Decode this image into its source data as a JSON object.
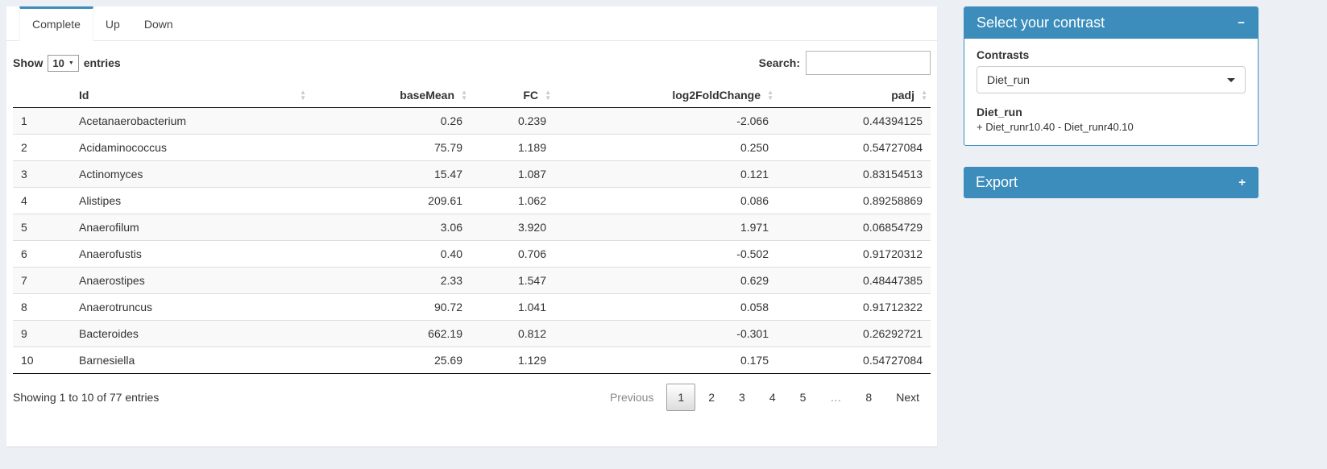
{
  "colors": {
    "primary": "#3c8dbc",
    "page_background": "#ecf0f5",
    "stripe_row": "#f9f9f9"
  },
  "tabs": {
    "items": [
      {
        "label": "Complete",
        "active": true
      },
      {
        "label": "Up",
        "active": false
      },
      {
        "label": "Down",
        "active": false
      }
    ]
  },
  "controls": {
    "show_label": "Show",
    "length_value": "10",
    "entries_label": "entries",
    "search_label": "Search:",
    "search_value": ""
  },
  "table": {
    "columns": [
      {
        "label": "",
        "sortable": false,
        "align": "left"
      },
      {
        "label": "Id",
        "sortable": true,
        "align": "left"
      },
      {
        "label": "baseMean",
        "sortable": true,
        "align": "right"
      },
      {
        "label": "FC",
        "sortable": true,
        "align": "right"
      },
      {
        "label": "log2FoldChange",
        "sortable": true,
        "align": "right"
      },
      {
        "label": "padj",
        "sortable": true,
        "align": "right"
      }
    ],
    "rows": [
      [
        "1",
        "Acetanaerobacterium",
        "0.26",
        "0.239",
        "-2.066",
        "0.44394125"
      ],
      [
        "2",
        "Acidaminococcus",
        "75.79",
        "1.189",
        "0.250",
        "0.54727084"
      ],
      [
        "3",
        "Actinomyces",
        "15.47",
        "1.087",
        "0.121",
        "0.83154513"
      ],
      [
        "4",
        "Alistipes",
        "209.61",
        "1.062",
        "0.086",
        "0.89258869"
      ],
      [
        "5",
        "Anaerofilum",
        "3.06",
        "3.920",
        "1.971",
        "0.06854729"
      ],
      [
        "6",
        "Anaerofustis",
        "0.40",
        "0.706",
        "-0.502",
        "0.91720312"
      ],
      [
        "7",
        "Anaerostipes",
        "2.33",
        "1.547",
        "0.629",
        "0.48447385"
      ],
      [
        "8",
        "Anaerotruncus",
        "90.72",
        "1.041",
        "0.058",
        "0.91712322"
      ],
      [
        "9",
        "Bacteroides",
        "662.19",
        "0.812",
        "-0.301",
        "0.26292721"
      ],
      [
        "10",
        "Barnesiella",
        "25.69",
        "1.129",
        "0.175",
        "0.54727084"
      ]
    ]
  },
  "footer": {
    "info": "Showing 1 to 10 of 77 entries",
    "previous_label": "Previous",
    "pages": [
      "1",
      "2",
      "3",
      "4",
      "5",
      "…",
      "8"
    ],
    "active_page": "1",
    "next_label": "Next"
  },
  "contrast_box": {
    "title": "Select your contrast",
    "collapse_icon": "−",
    "contrasts_label": "Contrasts",
    "select_value": "Diet_run",
    "detail_name": "Diet_run",
    "detail_formula": "+ Diet_runr10.40 - Diet_runr40.10"
  },
  "export_box": {
    "title": "Export",
    "expand_icon": "+"
  }
}
